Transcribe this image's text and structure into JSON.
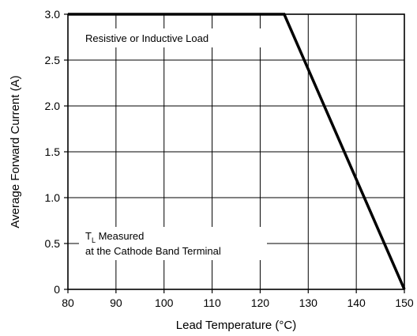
{
  "chart_data": {
    "type": "line",
    "title": "",
    "xlabel": "Lead Temperature (°C)",
    "ylabel": "Average Forward Current (A)",
    "xlim": [
      80,
      150
    ],
    "ylim": [
      0,
      3.0
    ],
    "grid": true,
    "x_ticks": [
      80,
      90,
      100,
      110,
      120,
      130,
      140,
      150
    ],
    "x_tick_labels": [
      "80",
      "90",
      "100",
      "110",
      "120",
      "130",
      "140",
      "150"
    ],
    "y_ticks": [
      0,
      0.5,
      1.0,
      1.5,
      2.0,
      2.5,
      3.0
    ],
    "y_tick_labels": [
      "0",
      "0.5",
      "1.0",
      "1.5",
      "2.0",
      "2.5",
      "3.0"
    ],
    "series": [
      {
        "x": [
          80,
          125,
          150
        ],
        "y": [
          3.0,
          3.0,
          0
        ]
      }
    ],
    "annotations": {
      "load": "Resistive or Inductive Load",
      "tl_main": "T",
      "tl_sub": "L",
      "tl_rest": " Measured",
      "tl_line2": "at the Cathode Band Terminal"
    },
    "line_color": "#000000"
  }
}
